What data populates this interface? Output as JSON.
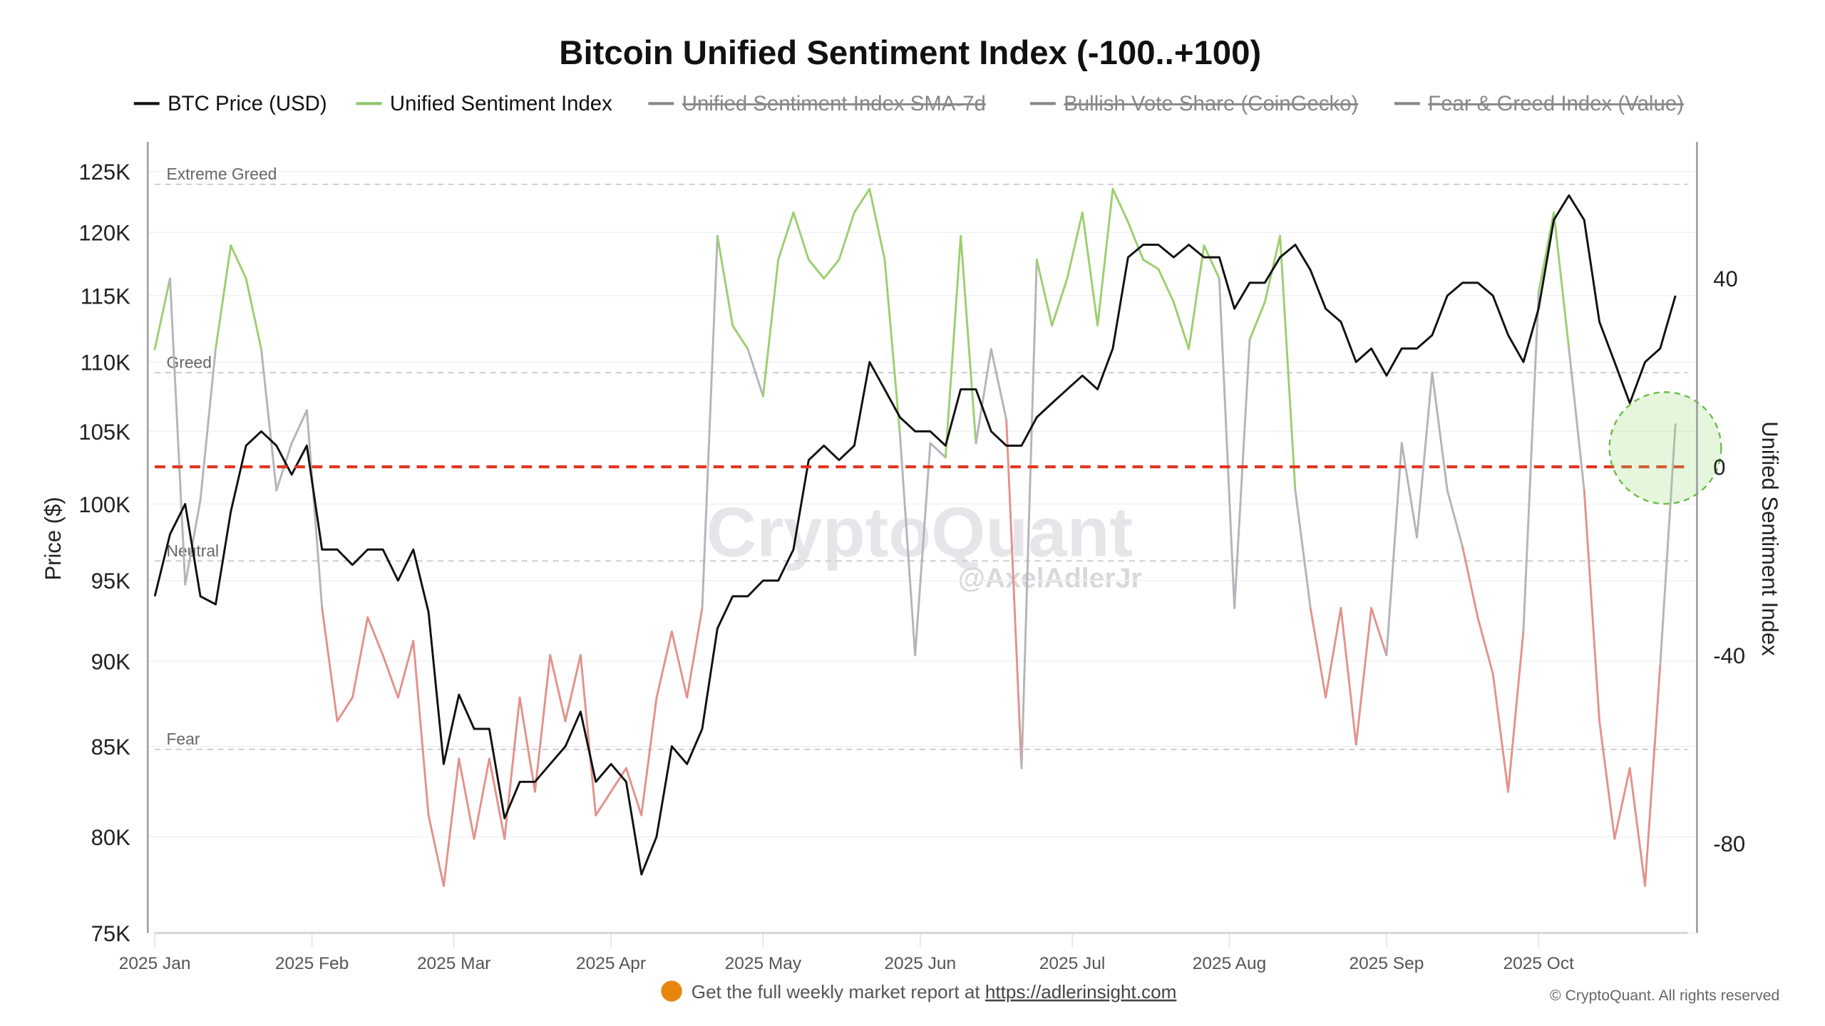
{
  "chart_data": {
    "type": "line",
    "title": "Bitcoin Unified Sentiment Index (-100..+100)",
    "legend": [
      {
        "name": "BTC Price (USD)",
        "color": "#111111",
        "visible": true
      },
      {
        "name": "Unified Sentiment Index",
        "color": "#8cc86a",
        "visible": true
      },
      {
        "name": "Unified Sentiment Index SMA-7d",
        "color": "#888888",
        "visible": false
      },
      {
        "name": "Bullish Vote Share (CoinGecko)",
        "color": "#888888",
        "visible": false
      },
      {
        "name": "Fear & Greed Index (Value)",
        "color": "#888888",
        "visible": false
      }
    ],
    "legend_position": "top",
    "x": [
      "2025-01-01",
      "2025-01-04",
      "2025-01-07",
      "2025-01-10",
      "2025-01-13",
      "2025-01-16",
      "2025-01-19",
      "2025-01-22",
      "2025-01-25",
      "2025-01-28",
      "2025-01-31",
      "2025-02-03",
      "2025-02-06",
      "2025-02-09",
      "2025-02-12",
      "2025-02-15",
      "2025-02-18",
      "2025-02-21",
      "2025-02-24",
      "2025-02-27",
      "2025-03-02",
      "2025-03-05",
      "2025-03-08",
      "2025-03-11",
      "2025-03-14",
      "2025-03-17",
      "2025-03-20",
      "2025-03-23",
      "2025-03-26",
      "2025-03-29",
      "2025-04-01",
      "2025-04-04",
      "2025-04-07",
      "2025-04-10",
      "2025-04-13",
      "2025-04-16",
      "2025-04-19",
      "2025-04-22",
      "2025-04-25",
      "2025-04-28",
      "2025-05-01",
      "2025-05-04",
      "2025-05-07",
      "2025-05-10",
      "2025-05-13",
      "2025-05-16",
      "2025-05-19",
      "2025-05-22",
      "2025-05-25",
      "2025-05-28",
      "2025-05-31",
      "2025-06-03",
      "2025-06-06",
      "2025-06-09",
      "2025-06-12",
      "2025-06-15",
      "2025-06-18",
      "2025-06-21",
      "2025-06-24",
      "2025-06-27",
      "2025-06-30",
      "2025-07-03",
      "2025-07-06",
      "2025-07-09",
      "2025-07-12",
      "2025-07-15",
      "2025-07-18",
      "2025-07-21",
      "2025-07-24",
      "2025-07-27",
      "2025-07-30",
      "2025-08-02",
      "2025-08-05",
      "2025-08-08",
      "2025-08-11",
      "2025-08-14",
      "2025-08-17",
      "2025-08-20",
      "2025-08-23",
      "2025-08-26",
      "2025-08-29",
      "2025-09-01",
      "2025-09-04",
      "2025-09-07",
      "2025-09-10",
      "2025-09-13",
      "2025-09-16",
      "2025-09-19",
      "2025-09-22",
      "2025-09-25",
      "2025-09-28",
      "2025-10-01",
      "2025-10-04",
      "2025-10-07",
      "2025-10-10",
      "2025-10-13",
      "2025-10-16",
      "2025-10-19",
      "2025-10-22",
      "2025-10-25",
      "2025-10-28"
    ],
    "series": [
      {
        "name": "BTC Price (USD)",
        "axis": "left",
        "color": "#111111",
        "values": [
          94000,
          98000,
          100000,
          94000,
          93500,
          99500,
          104000,
          105000,
          104000,
          102000,
          104000,
          97000,
          97000,
          96000,
          97000,
          97000,
          95000,
          97000,
          93000,
          84000,
          88000,
          86000,
          86000,
          81000,
          83000,
          83000,
          84000,
          85000,
          87000,
          83000,
          84000,
          83000,
          78000,
          80000,
          85000,
          84000,
          86000,
          92000,
          94000,
          94000,
          95000,
          95000,
          97000,
          103000,
          104000,
          103000,
          104000,
          110000,
          108000,
          106000,
          105000,
          105000,
          104000,
          108000,
          108000,
          105000,
          104000,
          104000,
          106000,
          107000,
          108000,
          109000,
          108000,
          111000,
          118000,
          119000,
          119000,
          118000,
          119000,
          118000,
          118000,
          114000,
          116000,
          116000,
          118000,
          119000,
          117000,
          114000,
          113000,
          110000,
          111000,
          109000,
          111000,
          111000,
          112000,
          115000,
          116000,
          116000,
          115000,
          112000,
          110000,
          114000,
          121000,
          123000,
          121000,
          113000,
          110000,
          107000,
          110000,
          111000,
          115000
        ]
      },
      {
        "name": "Unified Sentiment Index",
        "axis": "right",
        "values": [
          25,
          40,
          -25,
          -7,
          25,
          47,
          40,
          25,
          -5,
          5,
          12,
          -30,
          -54,
          -49,
          -32,
          -40,
          -49,
          -37,
          -74,
          -89,
          -62,
          -79,
          -62,
          -79,
          -49,
          -69,
          -40,
          -54,
          -40,
          -74,
          -69,
          -64,
          -74,
          -49,
          -35,
          -49,
          -30,
          49,
          30,
          25,
          15,
          44,
          54,
          44,
          40,
          44,
          54,
          59,
          44,
          7,
          -40,
          5,
          2,
          49,
          5,
          25,
          10,
          -64,
          44,
          30,
          40,
          54,
          30,
          59,
          52,
          44,
          42,
          35,
          25,
          47,
          40,
          -30,
          27,
          35,
          49,
          -5,
          -30,
          -49,
          -30,
          -59,
          -30,
          -40,
          5,
          -15,
          20,
          -5,
          -17,
          -32,
          -44,
          -69,
          -35,
          37,
          54,
          25,
          -5,
          -54,
          -79,
          -64,
          -89,
          -42,
          9
        ]
      }
    ],
    "zone_colors": {
      "greed": "#9ccf6e",
      "neutral": "#b4b4bc",
      "fear": "#e3928c"
    },
    "y_left": {
      "label": "Price ($)",
      "scale": "log",
      "range": [
        75000,
        127500
      ],
      "ticks": [
        75000,
        80000,
        85000,
        90000,
        95000,
        100000,
        105000,
        110000,
        115000,
        120000,
        125000
      ],
      "tick_labels": [
        "75K",
        "80K",
        "85K",
        "90K",
        "95K",
        "100K",
        "105K",
        "110K",
        "115K",
        "120K",
        "125K"
      ]
    },
    "y_right": {
      "label": "Unified Sentiment Index",
      "scale": "linear",
      "range": [
        -99,
        69
      ],
      "ticks": [
        -80,
        -40,
        0,
        40
      ],
      "tick_labels": [
        "-80",
        "-40",
        "0",
        "40"
      ]
    },
    "x_ticks": [
      "2025-01-01",
      "2025-02-01",
      "2025-03-01",
      "2025-04-01",
      "2025-05-01",
      "2025-06-01",
      "2025-07-01",
      "2025-08-01",
      "2025-09-01",
      "2025-10-01"
    ],
    "x_tick_labels": [
      "2025 Jan",
      "2025 Feb",
      "2025 Mar",
      "2025 Apr",
      "2025 May",
      "2025 Jun",
      "2025 Jul",
      "2025 Aug",
      "2025 Sep",
      "2025 Oct"
    ],
    "guides": [
      {
        "label": "Extreme Greed",
        "value": 60
      },
      {
        "label": "Greed",
        "value": 20
      },
      {
        "label": "Neutral",
        "value": -20
      },
      {
        "label": "Fear",
        "value": -60
      }
    ],
    "zero_line": {
      "value": 0,
      "color": "#e0341e"
    },
    "highlight": {
      "date": "2025-10-26",
      "value": 4,
      "color": "#6dbf4a"
    },
    "grid": true
  },
  "watermark": {
    "brand": "CryptoQuant",
    "handle": "@AxelAdlerJr"
  },
  "footer": {
    "promo_text": "Get the full weekly market report at ",
    "promo_link": "https://adlerinsight.com",
    "copyright": "© CryptoQuant. All rights reserved"
  }
}
